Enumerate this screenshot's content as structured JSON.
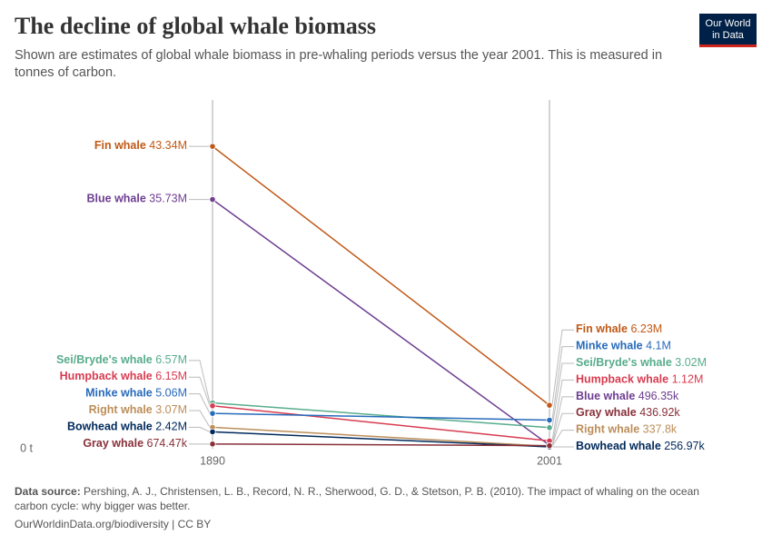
{
  "chart_data": {
    "type": "slope",
    "title": "The decline of global whale biomass",
    "subtitle": "Shown are estimates of global whale biomass in pre-whaling periods versus the year 2001. This is measured in tonnes of carbon.",
    "categories": [
      "1890",
      "2001"
    ],
    "series": [
      {
        "name": "Fin whale",
        "color": "#c05917",
        "values": [
          43340000,
          6230000
        ],
        "value_labels": [
          "43.34M",
          "6.23M"
        ]
      },
      {
        "name": "Blue whale",
        "color": "#6d3e91",
        "values": [
          35730000,
          496350
        ],
        "value_labels": [
          "35.73M",
          "496.35k"
        ]
      },
      {
        "name": "Sei/Bryde's whale",
        "color": "#58ac8c",
        "values": [
          6570000,
          3020000
        ],
        "value_labels": [
          "6.57M",
          "3.02M"
        ]
      },
      {
        "name": "Humpback whale",
        "color": "#d73c50",
        "values": [
          6150000,
          1120000
        ],
        "value_labels": [
          "6.15M",
          "1.12M"
        ]
      },
      {
        "name": "Minke whale",
        "color": "#286bbb",
        "values": [
          5060000,
          4100000
        ],
        "value_labels": [
          "5.06M",
          "4.1M"
        ]
      },
      {
        "name": "Right whale",
        "color": "#bc8e5a",
        "values": [
          3070000,
          337800
        ],
        "value_labels": [
          "3.07M",
          "337.8k"
        ]
      },
      {
        "name": "Bowhead whale",
        "color": "#00295b",
        "values": [
          2420000,
          256970
        ],
        "value_labels": [
          "2.42M",
          "256.97k"
        ]
      },
      {
        "name": "Gray whale",
        "color": "#883039",
        "values": [
          674470,
          436920
        ],
        "value_labels": [
          "674.47k",
          "436.92k"
        ]
      }
    ],
    "ylim": [
      0,
      50000000
    ],
    "yticks": [
      {
        "value": 0,
        "label": "0 t"
      }
    ],
    "grid": false,
    "source_label": "Data source:",
    "source": "Pershing, A. J., Christensen, L. B., Record, N. R., Sherwood, G. D., & Stetson, P. B. (2010). The impact of whaling on the ocean carbon cycle: why bigger was better.",
    "footer": "OurWorldinData.org/biodiversity | CC BY",
    "logo": [
      "Our World",
      "in Data"
    ]
  }
}
